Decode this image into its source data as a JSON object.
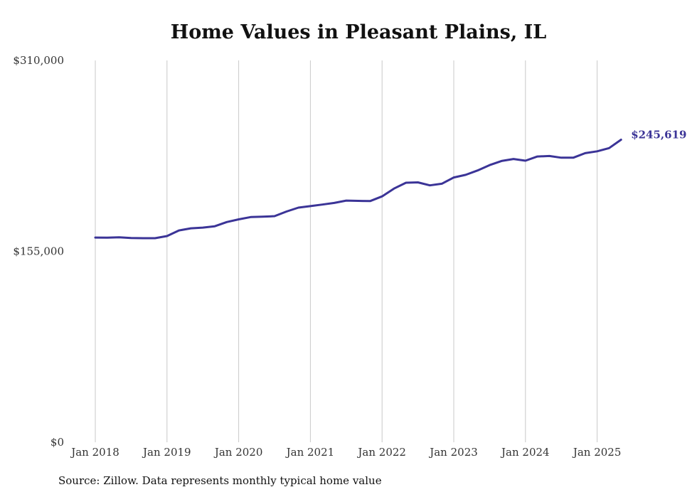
{
  "chart_data": {
    "type": "line",
    "title": "Home Values in Pleasant Plains, IL",
    "xlabel": "",
    "ylabel": "",
    "ylim": [
      0,
      310000
    ],
    "y_ticks": [
      {
        "value": 0,
        "label": "$0"
      },
      {
        "value": 155000,
        "label": "$155,000"
      },
      {
        "value": 310000,
        "label": "$310,000"
      }
    ],
    "x_ticks": [
      "Jan 2018",
      "Jan 2019",
      "Jan 2020",
      "Jan 2021",
      "Jan 2022",
      "Jan 2023",
      "Jan 2024",
      "Jan 2025"
    ],
    "grid": "vertical",
    "end_label": "$245,619",
    "line_color": "#3b3497",
    "x": [
      "2018-01",
      "2018-03",
      "2018-05",
      "2018-07",
      "2018-09",
      "2018-11",
      "2019-01",
      "2019-03",
      "2019-05",
      "2019-07",
      "2019-09",
      "2019-11",
      "2020-01",
      "2020-03",
      "2020-05",
      "2020-07",
      "2020-09",
      "2020-11",
      "2021-01",
      "2021-03",
      "2021-05",
      "2021-07",
      "2021-09",
      "2021-11",
      "2022-01",
      "2022-03",
      "2022-05",
      "2022-07",
      "2022-09",
      "2022-11",
      "2023-01",
      "2023-03",
      "2023-05",
      "2023-07",
      "2023-09",
      "2023-11",
      "2024-01",
      "2024-03",
      "2024-05",
      "2024-07",
      "2024-09",
      "2024-11",
      "2025-01",
      "2025-03",
      "2025-05"
    ],
    "values": [
      166200,
      166100,
      166400,
      165800,
      165700,
      165700,
      167400,
      172000,
      173700,
      174300,
      175400,
      178800,
      181000,
      182800,
      183100,
      183600,
      187300,
      190500,
      191700,
      193000,
      194300,
      196200,
      196000,
      195800,
      199600,
      206000,
      210700,
      211000,
      208600,
      209900,
      215000,
      217100,
      220700,
      225000,
      228400,
      230000,
      228600,
      232000,
      232400,
      231000,
      231000,
      234700,
      236200,
      238800,
      245619
    ]
  },
  "footer": "Source: Zillow. Data represents monthly typical home value"
}
